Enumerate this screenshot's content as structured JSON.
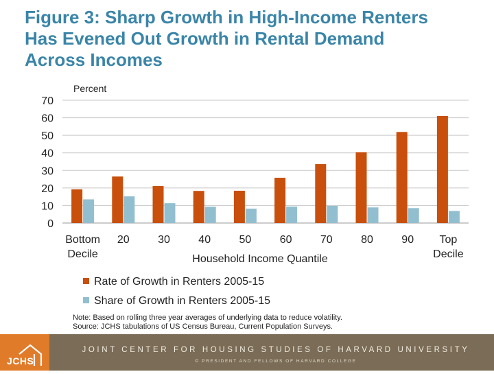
{
  "title_lines": [
    "Figure 3: Sharp Growth in High-Income Renters",
    "Has Evened Out Growth in Rental Demand",
    "Across Incomes"
  ],
  "chart_data": {
    "type": "bar",
    "ylabel": "Percent",
    "xlabel": "Household Income Quantile",
    "ylim": [
      0,
      70
    ],
    "yticks": [
      "0",
      "10",
      "20",
      "30",
      "40",
      "50",
      "60",
      "70"
    ],
    "grid": true,
    "legend_position": "bottom",
    "categories": [
      [
        "Bottom",
        "Decile"
      ],
      [
        "20"
      ],
      [
        "30"
      ],
      [
        "40"
      ],
      [
        "50"
      ],
      [
        "60"
      ],
      [
        "70"
      ],
      [
        "80"
      ],
      [
        "90"
      ],
      [
        "Top",
        "Decile"
      ]
    ],
    "series": [
      {
        "name": "Rate of Growth in Renters 2005-15",
        "color": "#c94f0c",
        "values": [
          19.2,
          26.5,
          21.1,
          18.3,
          18.4,
          25.8,
          33.6,
          40.3,
          51.9,
          61.0
        ]
      },
      {
        "name": "Share of Growth in Renters 2005-15",
        "color": "#92bfd0",
        "values": [
          13.5,
          15.2,
          11.3,
          9.3,
          8.2,
          9.4,
          9.8,
          8.9,
          8.5,
          6.9
        ]
      }
    ]
  },
  "note_lines": [
    "Note: Based on rolling three year averages of underlying data to reduce volatility.",
    "Source: JCHS tabulations of US Census Bureau, Current Population Surveys."
  ],
  "footer": {
    "logo_text": "JCHS",
    "org_name": "JOINT CENTER FOR HOUSING STUDIES OF HARVARD UNIVERSITY",
    "copyright": "© PRESIDENT AND FELLOWS OF HARVARD COLLEGE",
    "logo_color": "#e07b2a",
    "bar_color": "#7a6c56"
  }
}
